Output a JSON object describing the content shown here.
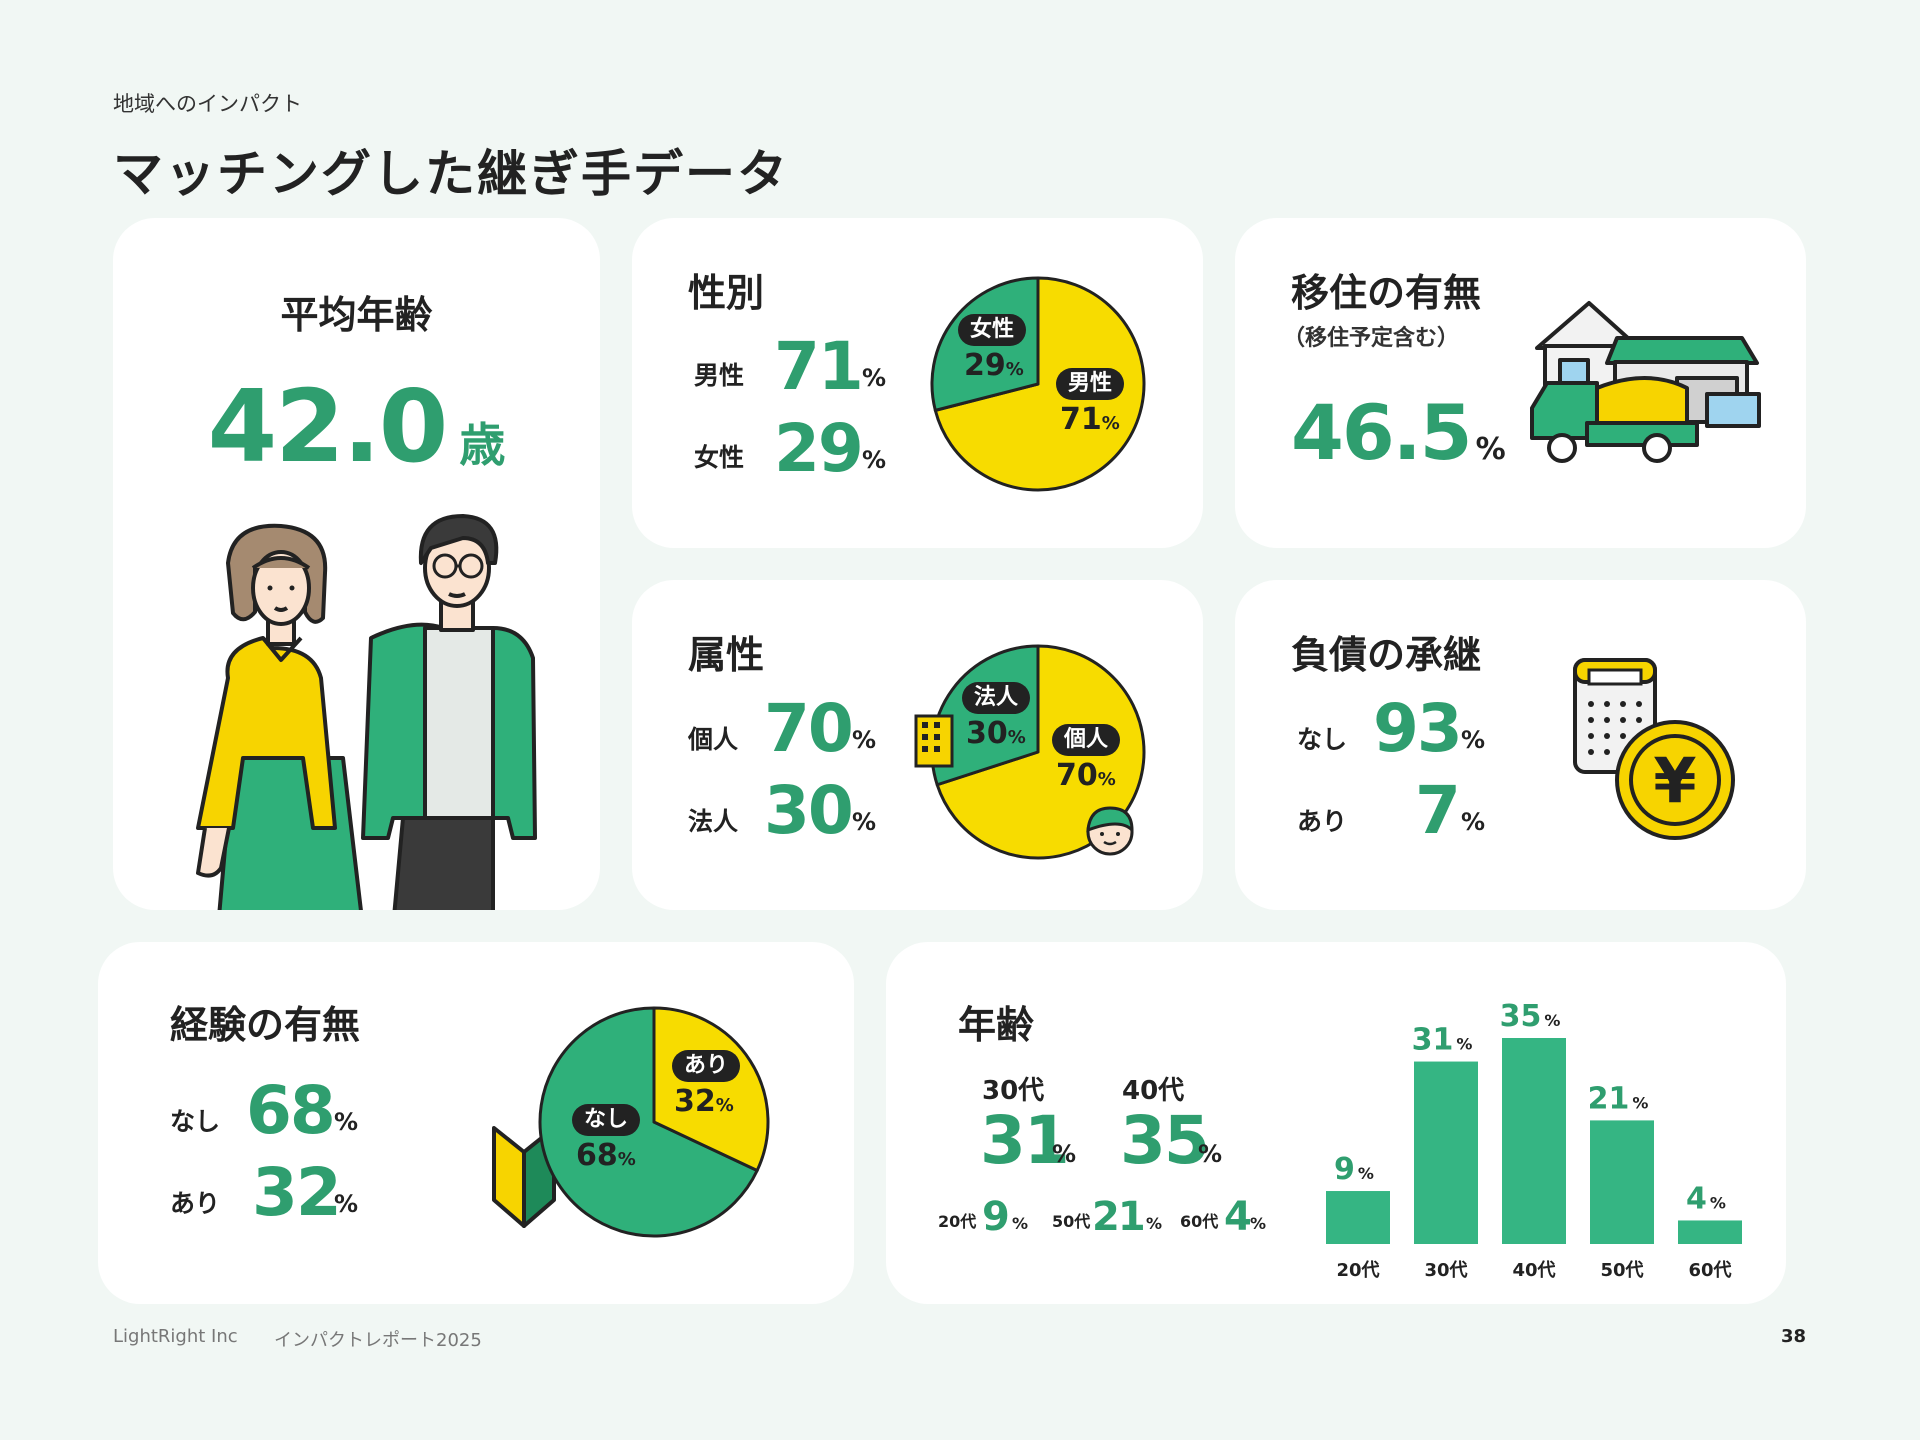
{
  "header": {
    "kicker": "地域へのインパクト",
    "title": "マッチングした継ぎ手データ"
  },
  "avg_age": {
    "title": "平均年齢",
    "value": "42.0",
    "unit": "歳"
  },
  "gender": {
    "title": "性別",
    "rows": [
      {
        "label": "男性",
        "value": "71",
        "unit": "%"
      },
      {
        "label": "女性",
        "value": "29",
        "unit": "%"
      }
    ],
    "pie_tags": {
      "female": "女性",
      "male": "男性"
    },
    "pie_vals": {
      "female": "29",
      "male": "71"
    }
  },
  "migration": {
    "title": "移住の有無",
    "subtitle": "（移住予定含む）",
    "value": "46.5",
    "unit": "%"
  },
  "attribute": {
    "title": "属性",
    "rows": [
      {
        "label": "個人",
        "value": "70",
        "unit": "%"
      },
      {
        "label": "法人",
        "value": "30",
        "unit": "%"
      }
    ],
    "pie_tags": {
      "corp": "法人",
      "indiv": "個人"
    },
    "pie_vals": {
      "corp": "30",
      "indiv": "70"
    }
  },
  "debt": {
    "title": "負債の承継",
    "rows": [
      {
        "label": "なし",
        "value": "93",
        "unit": "%"
      },
      {
        "label": "あり",
        "value": "7",
        "unit": "%"
      }
    ],
    "yen_symbol": "¥"
  },
  "experience": {
    "title": "経験の有無",
    "rows": [
      {
        "label": "なし",
        "value": "68",
        "unit": "%"
      },
      {
        "label": "あり",
        "value": "32",
        "unit": "%"
      }
    ],
    "pie_tags": {
      "yes": "あり",
      "no": "なし"
    },
    "pie_vals": {
      "yes": "32",
      "no": "68"
    }
  },
  "age": {
    "title": "年齢",
    "big": [
      {
        "label": "30代",
        "value": "31",
        "unit": "%"
      },
      {
        "label": "40代",
        "value": "35",
        "unit": "%"
      }
    ],
    "small": [
      {
        "label": "20代",
        "value": "9",
        "unit": "%"
      },
      {
        "label": "50代",
        "value": "21",
        "unit": "%"
      },
      {
        "label": "60代",
        "value": "4",
        "unit": "%"
      }
    ]
  },
  "footer": {
    "company": "LightRight Inc",
    "report": "インパクトレポート2025",
    "page": "38"
  },
  "colors": {
    "green": "#2f9e6f",
    "bar_green": "#35b583",
    "yellow": "#f7dc00",
    "dark": "#222222"
  },
  "chart_data": [
    {
      "type": "pie",
      "title": "性別",
      "categories": [
        "男性",
        "女性"
      ],
      "values": [
        71,
        29
      ],
      "unit": "%"
    },
    {
      "type": "pie",
      "title": "属性",
      "categories": [
        "個人",
        "法人"
      ],
      "values": [
        70,
        30
      ],
      "unit": "%"
    },
    {
      "type": "pie",
      "title": "経験の有無",
      "categories": [
        "なし",
        "あり"
      ],
      "values": [
        68,
        32
      ],
      "unit": "%"
    },
    {
      "type": "bar",
      "title": "年齢",
      "categories": [
        "20代",
        "30代",
        "40代",
        "50代",
        "60代"
      ],
      "values": [
        9,
        31,
        35,
        21,
        4
      ],
      "unit": "%",
      "ylim": [
        0,
        35
      ]
    }
  ]
}
